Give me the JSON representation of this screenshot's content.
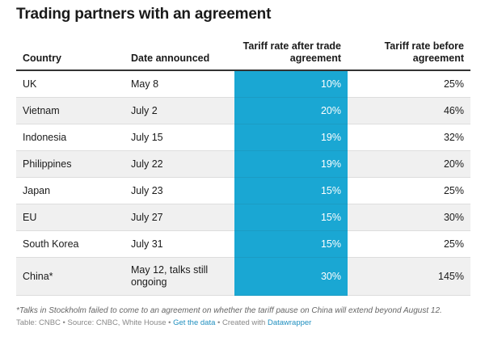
{
  "title": "Trading partners with an agreement",
  "table": {
    "headers": {
      "country": "Country",
      "date": "Date announced",
      "after": "Tariff rate after trade agreement",
      "before": "Tariff rate before agreement"
    },
    "rows": [
      {
        "country": "UK",
        "date": "May 8",
        "after": "10%",
        "before": "25%"
      },
      {
        "country": "Vietnam",
        "date": "July 2",
        "after": "20%",
        "before": "46%"
      },
      {
        "country": "Indonesia",
        "date": "July 15",
        "after": "19%",
        "before": "32%"
      },
      {
        "country": "Philippines",
        "date": "July 22",
        "after": "19%",
        "before": "20%"
      },
      {
        "country": "Japan",
        "date": "July 23",
        "after": "15%",
        "before": "25%"
      },
      {
        "country": "EU",
        "date": "July 27",
        "after": "15%",
        "before": "30%"
      },
      {
        "country": "South Korea",
        "date": "July 31",
        "after": "15%",
        "before": "25%"
      },
      {
        "country": "China*",
        "date": "May 12, talks still ongoing",
        "after": "30%",
        "before": "145%"
      }
    ]
  },
  "footnote": "*Talks in Stockholm failed to come to an agreement on whether the tariff pause on China will extend beyond August 12.",
  "source": {
    "prefix": "Table: CNBC • Source: CNBC, White House • ",
    "get_data": "Get the data",
    "middle": " • Created with ",
    "datawrapper": "Datawrapper"
  },
  "colors": {
    "highlight_column": "#1aa7d3",
    "row_shade": "#f0f0f0",
    "link": "#1f8fbf"
  }
}
